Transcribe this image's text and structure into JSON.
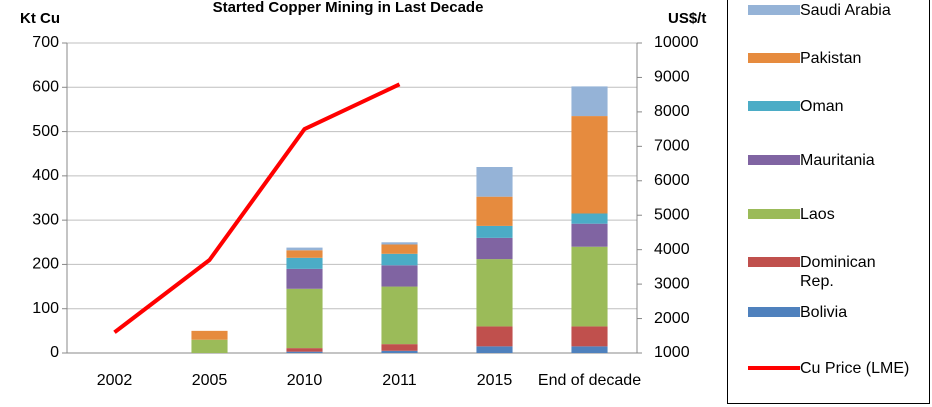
{
  "chart_data": {
    "type": "bar",
    "title": "Started Copper Mining in Last Decade",
    "y_label": "Kt Cu",
    "y2_label": "US$/t",
    "categories": [
      "2002",
      "2005",
      "2010",
      "2011",
      "2015",
      "End of decade"
    ],
    "series": [
      {
        "name": "Bolivia",
        "color": "#4f81bd",
        "values": [
          0,
          0,
          3,
          5,
          15,
          15
        ]
      },
      {
        "name": "Dominican Rep.",
        "color": "#c0504d",
        "values": [
          0,
          0,
          8,
          15,
          45,
          45
        ]
      },
      {
        "name": "Laos",
        "color": "#9bbb59",
        "values": [
          0,
          30,
          134,
          130,
          152,
          180
        ]
      },
      {
        "name": "Mauritania",
        "color": "#8064a2",
        "values": [
          0,
          0,
          45,
          48,
          48,
          52
        ]
      },
      {
        "name": "Oman",
        "color": "#4bacc6",
        "values": [
          0,
          0,
          25,
          26,
          27,
          23
        ]
      },
      {
        "name": "Pakistan",
        "color": "#e68b3e",
        "values": [
          0,
          20,
          17,
          21,
          66,
          220
        ]
      },
      {
        "name": "Saudi Arabia",
        "color": "#95b3d7",
        "values": [
          0,
          0,
          6,
          5,
          67,
          67
        ]
      },
      {
        "name": "Cu Price (LME)",
        "color": "#ff0000",
        "type": "line",
        "axis": "y2",
        "values": [
          1600,
          3700,
          7500,
          8800,
          null,
          null
        ]
      }
    ],
    "ylim": [
      0,
      700
    ],
    "yticks": [
      0,
      100,
      200,
      300,
      400,
      500,
      600,
      700
    ],
    "y2lim": [
      1000,
      10000
    ],
    "y2ticks": [
      1000,
      2000,
      3000,
      4000,
      5000,
      6000,
      7000,
      8000,
      9000,
      10000
    ],
    "grid": true,
    "stacked": true,
    "legend": "right"
  }
}
